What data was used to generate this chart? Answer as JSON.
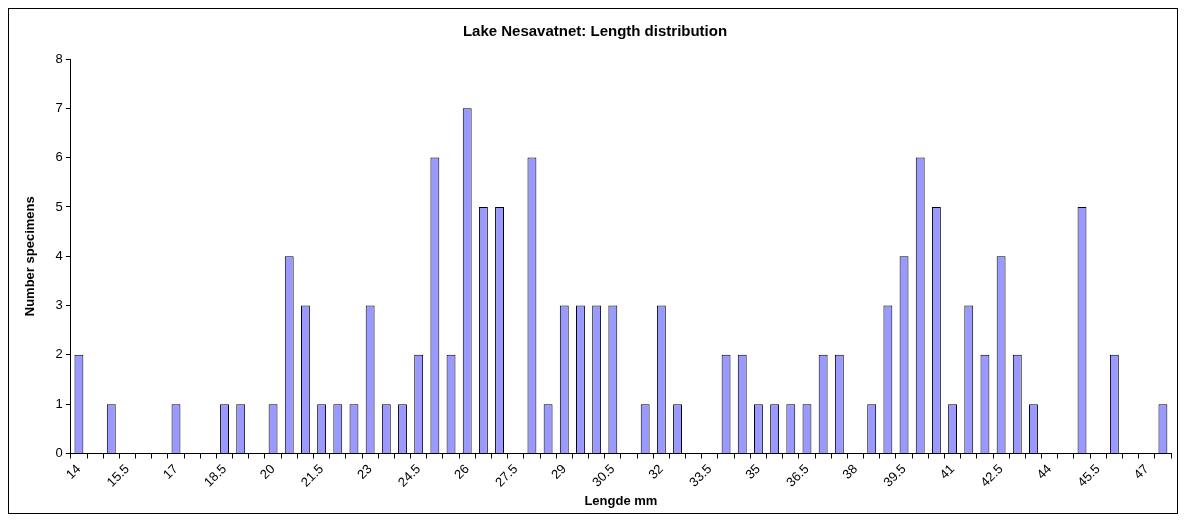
{
  "chart_data": {
    "type": "bar",
    "title": "Lake Nesavatnet: Length distribution",
    "xlabel": "Lengde mm",
    "ylabel": "Number specimens",
    "categories": [
      "14",
      null,
      null,
      "15.5",
      null,
      null,
      "17",
      null,
      null,
      "18.5",
      null,
      null,
      "20",
      null,
      null,
      "21.5",
      null,
      null,
      "23",
      null,
      null,
      "24.5",
      null,
      null,
      "26",
      null,
      null,
      "27.5",
      null,
      null,
      "29",
      null,
      null,
      "30.5",
      null,
      null,
      "32",
      null,
      null,
      "33.5",
      null,
      null,
      "35",
      null,
      null,
      "36.5",
      null,
      null,
      "38",
      null,
      null,
      "39.5",
      null,
      null,
      "41",
      null,
      null,
      "42.5",
      null,
      null,
      "44",
      null,
      null,
      "45.5",
      null,
      null,
      "47",
      null
    ],
    "values": [
      2,
      0,
      1,
      0,
      0,
      0,
      1,
      0,
      0,
      1,
      1,
      0,
      1,
      4,
      3,
      1,
      1,
      1,
      3,
      1,
      1,
      2,
      6,
      2,
      7,
      5,
      5,
      0,
      6,
      1,
      3,
      3,
      3,
      3,
      0,
      1,
      3,
      1,
      0,
      0,
      2,
      2,
      1,
      1,
      1,
      1,
      2,
      2,
      0,
      1,
      3,
      4,
      6,
      5,
      1,
      3,
      2,
      4,
      2,
      1,
      0,
      0,
      5,
      0,
      2,
      0,
      0,
      1
    ],
    "color": "#9999ff",
    "ylim": [
      0,
      8
    ],
    "yticks": [
      0,
      1,
      2,
      3,
      4,
      5,
      6,
      7,
      8
    ],
    "grid": false,
    "legend": false
  }
}
